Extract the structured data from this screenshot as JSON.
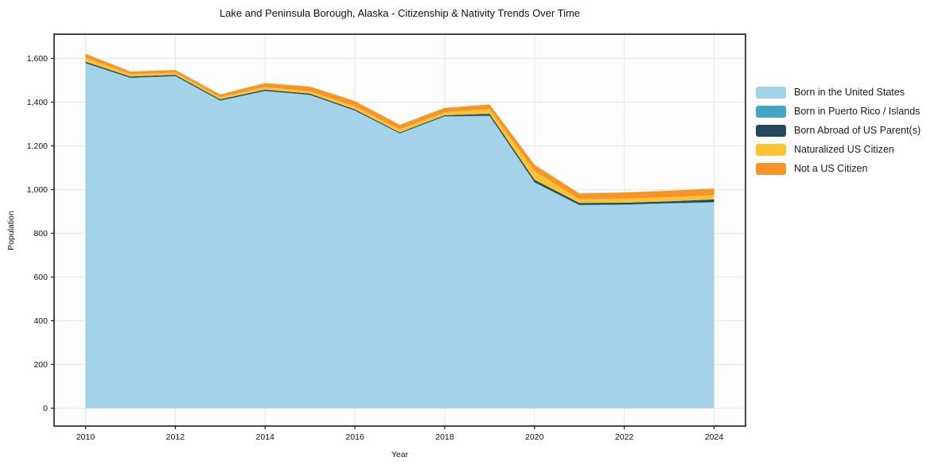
{
  "chart_data": {
    "type": "area",
    "stacked": true,
    "title": "Lake and Peninsula Borough, Alaska - Citizenship & Nativity Trends Over Time",
    "xlabel": "Year",
    "ylabel": "Population",
    "x": [
      2010,
      2011,
      2012,
      2013,
      2014,
      2015,
      2016,
      2017,
      2018,
      2019,
      2020,
      2021,
      2022,
      2023,
      2024
    ],
    "series": [
      {
        "name": "Born in the United States",
        "color": "#a4d3e9",
        "values": [
          1577,
          1510,
          1518,
          1406,
          1450,
          1432,
          1360,
          1256,
          1334,
          1336,
          1032,
          928,
          930,
          936,
          941
        ]
      },
      {
        "name": "Born in Puerto Rico / Islands",
        "color": "#41a6c4",
        "values": [
          2,
          2,
          2,
          2,
          2,
          2,
          2,
          2,
          2,
          2,
          2,
          2,
          2,
          2,
          2
        ]
      },
      {
        "name": "Born Abroad of US Parent(s)",
        "color": "#24485c",
        "values": [
          6,
          5,
          5,
          5,
          5,
          5,
          5,
          4,
          4,
          9,
          11,
          9,
          8,
          8,
          12
        ]
      },
      {
        "name": "Naturalized US Citizen",
        "color": "#fdc232",
        "values": [
          18,
          11,
          10,
          10,
          12,
          11,
          14,
          14,
          14,
          21,
          40,
          17,
          19,
          19,
          20
        ]
      },
      {
        "name": "Not a US Citizen",
        "color": "#f79428",
        "values": [
          18,
          12,
          12,
          12,
          18,
          21,
          24,
          20,
          20,
          21,
          29,
          26,
          28,
          30,
          30
        ]
      }
    ],
    "x_ticks": {
      "values": [
        2010,
        2012,
        2014,
        2016,
        2018,
        2020,
        2022,
        2024
      ],
      "labels": [
        "2010",
        "2012",
        "2014",
        "2016",
        "2018",
        "2020",
        "2022",
        "2024"
      ]
    },
    "y_ticks": {
      "values": [
        0,
        200,
        400,
        600,
        800,
        1000,
        1200,
        1400,
        1600
      ],
      "labels": [
        "0",
        "200",
        "400",
        "600",
        "800",
        "1,000",
        "1,200",
        "1,400",
        "1,600"
      ]
    },
    "xlim": [
      2009.3,
      2024.7
    ],
    "ylim": [
      -82,
      1711
    ],
    "grid": true,
    "grid_color": "#e8e8e8",
    "plot_bg": "#fdfdfd",
    "axis_color": "#1a1a1a",
    "legend_position": "right"
  }
}
